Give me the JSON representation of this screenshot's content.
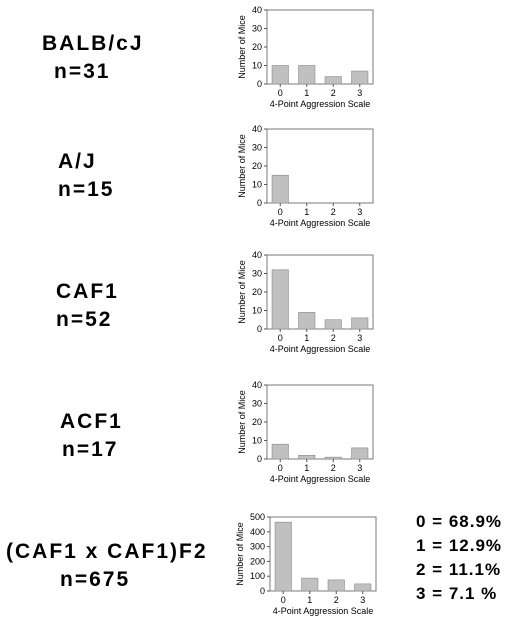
{
  "chart_data": [
    {
      "type": "bar",
      "strain": "BALB/cJ",
      "n_label": "n=31",
      "categories": [
        "0",
        "1",
        "2",
        "3"
      ],
      "values": [
        10,
        10,
        4,
        7
      ],
      "ylim": [
        0,
        40
      ],
      "yticks": [
        "0",
        "10",
        "20",
        "30",
        "40"
      ],
      "xlabel": "4-Point Aggression Scale",
      "ylabel": "Number of Mice",
      "bar_color": "#c0c0c0"
    },
    {
      "type": "bar",
      "strain": "A/J",
      "n_label": "n=15",
      "categories": [
        "0",
        "1",
        "2",
        "3"
      ],
      "values": [
        15,
        0,
        0,
        0
      ],
      "ylim": [
        0,
        40
      ],
      "yticks": [
        "0",
        "10",
        "20",
        "30",
        "40"
      ],
      "xlabel": "4-Point Aggression Scale",
      "ylabel": "Number of Mice",
      "bar_color": "#c0c0c0"
    },
    {
      "type": "bar",
      "strain": "CAF1",
      "n_label": "n=52",
      "categories": [
        "0",
        "1",
        "2",
        "3"
      ],
      "values": [
        32,
        9,
        5,
        6
      ],
      "ylim": [
        0,
        40
      ],
      "yticks": [
        "0",
        "10",
        "20",
        "30",
        "40"
      ],
      "xlabel": "4-Point Aggression Scale",
      "ylabel": "Number of Mice",
      "bar_color": "#c0c0c0"
    },
    {
      "type": "bar",
      "strain": "ACF1",
      "n_label": "n=17",
      "categories": [
        "0",
        "1",
        "2",
        "3"
      ],
      "values": [
        8,
        2,
        1,
        6
      ],
      "ylim": [
        0,
        40
      ],
      "yticks": [
        "0",
        "10",
        "20",
        "30",
        "40"
      ],
      "xlabel": "4-Point Aggression Scale",
      "ylabel": "Number of Mice",
      "bar_color": "#c0c0c0"
    },
    {
      "type": "bar",
      "strain": "(CAF1 x CAF1)F2",
      "n_label": "n=675",
      "categories": [
        "0",
        "1",
        "2",
        "3"
      ],
      "values": [
        465,
        87,
        75,
        48
      ],
      "ylim": [
        0,
        500
      ],
      "yticks": [
        "0",
        "100",
        "200",
        "300",
        "400",
        "500"
      ],
      "xlabel": "4-Point Aggression Scale",
      "ylabel": "Number of Mice",
      "bar_color": "#c0c0c0"
    }
  ],
  "percentages": [
    "0 = 68.9%",
    "1 = 12.9%",
    "2 = 11.1%",
    "3 = 7.1 %"
  ]
}
